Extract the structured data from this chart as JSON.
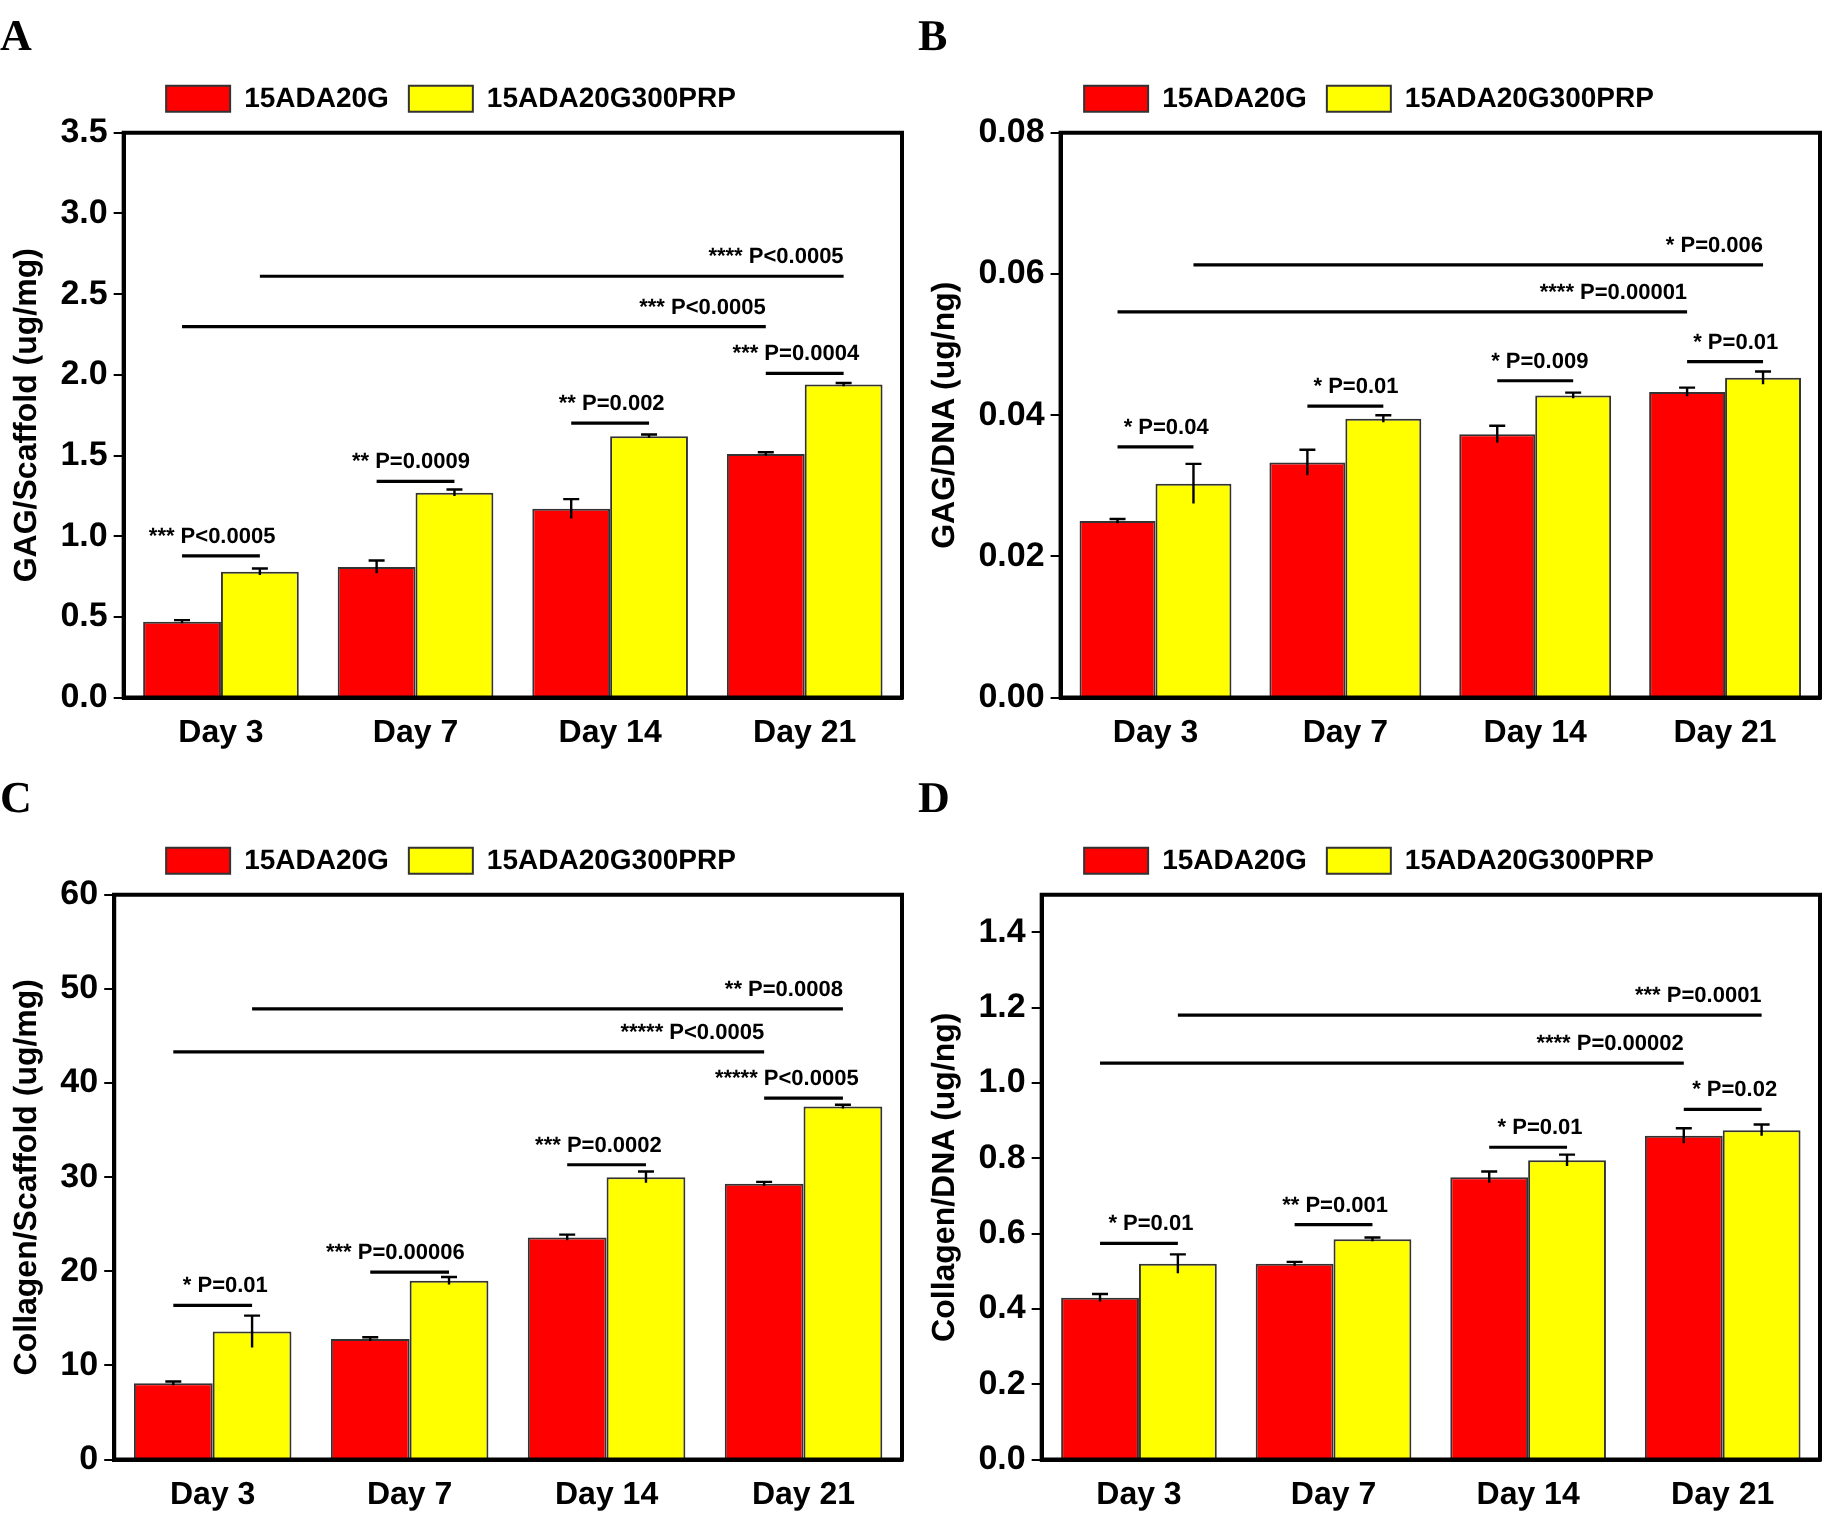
{
  "chart_data": [
    {
      "type": "bar",
      "title": "A",
      "ylabel": "GAG/Scaffold (ug/mg)",
      "categories": [
        "Day 3",
        "Day 7",
        "Day 14",
        "Day 21"
      ],
      "series": [
        {
          "name": "15ADA20G",
          "color": "#ff0000",
          "values": [
            0.47,
            0.81,
            1.17,
            1.51
          ],
          "errors": [
            0.01,
            0.04,
            0.06,
            0.01
          ]
        },
        {
          "name": "15ADA20G300PRP",
          "color": "#ffff00",
          "values": [
            0.78,
            1.27,
            1.62,
            1.94
          ],
          "errors": [
            0.02,
            0.02,
            0.01,
            0.01
          ]
        }
      ],
      "ylim": [
        0,
        3.5
      ],
      "yticks": [
        {
          "value": 0,
          "label": "0.0"
        },
        0.5,
        {
          "value": 1,
          "label": "1.0"
        },
        1.5,
        {
          "value": 2,
          "label": "2.0"
        },
        2.5,
        {
          "value": 3,
          "label": "3.0"
        },
        3.5
      ],
      "grid": false,
      "legend": "top",
      "annotations": [
        "**** P<0.0005",
        "*** P<0.0005",
        "*** P=0.0004",
        "** P=0.002",
        "** P=0.0009",
        "*** P<0.0005"
      ]
    },
    {
      "type": "bar",
      "title": "B",
      "ylabel": "GAG/DNA (ug/ng)",
      "categories": [
        "Day 3",
        "Day 7",
        "Day 14",
        "Day 21"
      ],
      "series": [
        {
          "name": "15ADA20G",
          "color": "#ff0000",
          "values": [
            0.025,
            0.0333,
            0.0373,
            0.0433
          ],
          "errors": [
            0.0003,
            0.0018,
            0.0012,
            0.0006
          ]
        },
        {
          "name": "15ADA20G300PRP",
          "color": "#ffff00",
          "values": [
            0.0303,
            0.0395,
            0.0428,
            0.0453
          ],
          "errors": [
            0.0028,
            0.0005,
            0.0004,
            0.0009
          ]
        }
      ],
      "ylim": [
        0,
        0.08
      ],
      "yticks": [
        {
          "value": 0,
          "label": "0.00"
        },
        0.02,
        0.04,
        0.06,
        0.08
      ],
      "grid": false,
      "legend": "top",
      "annotations": [
        "* P=0.006",
        "**** P=0.00001",
        "* P=0.01",
        "* P=0.009",
        "* P=0.01",
        "* P=0.04"
      ]
    },
    {
      "type": "bar",
      "title": "C",
      "ylabel": "Collagen/Scaffold (ug/mg)",
      "categories": [
        "Day 3",
        "Day 7",
        "Day 14",
        "Day 21"
      ],
      "series": [
        {
          "name": "15ADA20G",
          "color": "#ff0000",
          "values": [
            8.1,
            12.8,
            23.6,
            29.3
          ],
          "errors": [
            0.2,
            0.2,
            0.3,
            0.2
          ]
        },
        {
          "name": "15ADA20G300PRP",
          "color": "#ffff00",
          "values": [
            13.6,
            19.0,
            30.0,
            37.5
          ],
          "errors": [
            1.7,
            0.4,
            0.6,
            0.2
          ]
        }
      ],
      "ylim": [
        0,
        60
      ],
      "yticks": [
        0,
        10,
        20,
        30,
        40,
        50,
        60
      ],
      "grid": false,
      "legend": "top",
      "annotations": [
        "** P=0.0008",
        "***** P<0.0005",
        "***** P<0.0005",
        "*** P=0.0002",
        "*** P=0.00006",
        "* P=0.01"
      ]
    },
    {
      "type": "bar",
      "title": "D",
      "ylabel": "Collagen/DNA (ug/ng)",
      "categories": [
        "Day 3",
        "Day 7",
        "Day 14",
        "Day 21"
      ],
      "series": [
        {
          "name": "15ADA20G",
          "color": "#ff0000",
          "values": [
            0.43,
            0.52,
            0.75,
            0.86
          ],
          "errors": [
            0.01,
            0.005,
            0.015,
            0.02
          ]
        },
        {
          "name": "15ADA20G300PRP",
          "color": "#ffff00",
          "values": [
            0.52,
            0.585,
            0.795,
            0.875
          ],
          "errors": [
            0.025,
            0.005,
            0.015,
            0.015
          ]
        }
      ],
      "ylim": [
        0,
        1.5
      ],
      "yticks": [
        {
          "value": 0,
          "label": "0.0"
        },
        0.2,
        0.4,
        0.6,
        0.8,
        {
          "value": 1,
          "label": "1.0"
        },
        1.2,
        1.4
      ],
      "grid": false,
      "legend": "top",
      "annotations": [
        "*** P=0.0001",
        "**** P=0.00002",
        "* P=0.02",
        "* P=0.01",
        "** P=0.001",
        "* P=0.01"
      ]
    }
  ]
}
